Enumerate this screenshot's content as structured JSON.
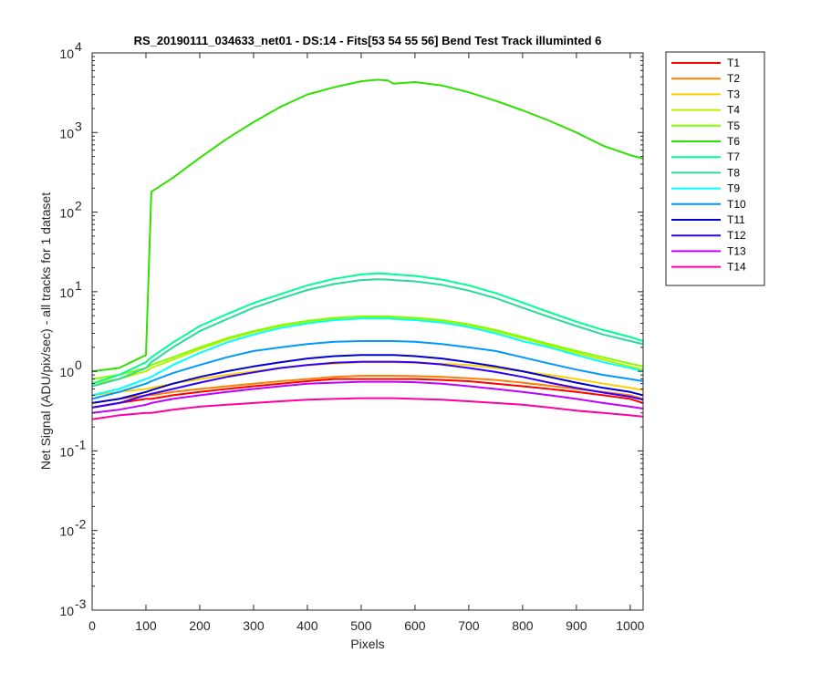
{
  "chart_data": {
    "type": "line",
    "title": "RS_20190111_034633_net01 - DS:14 - Fits[53  54  55  56]   Bend Test        Track illuminted 6",
    "xlabel": "Pixels",
    "ylabel": "Net Signal (ADU/pix/sec) - all tracks for 1 dataset",
    "yscale": "log",
    "xlim": [
      0,
      1024
    ],
    "ylim": [
      0.001,
      10000
    ],
    "x_ticks": [
      0,
      100,
      200,
      300,
      400,
      500,
      600,
      700,
      800,
      900,
      1000
    ],
    "x_tick_labels": [
      "0",
      "100",
      "200",
      "300",
      "400",
      "500",
      "600",
      "700",
      "800",
      "900",
      "1000"
    ],
    "y_ticks": [
      0.001,
      0.01,
      0.1,
      1,
      10,
      100,
      1000,
      10000
    ],
    "y_tick_mantissa": [
      "10",
      "10",
      "10",
      "10",
      "10",
      "10",
      "10",
      "10"
    ],
    "y_tick_exponents": [
      "-3",
      "-2",
      "-1",
      "0",
      "1",
      "2",
      "3",
      "4"
    ],
    "grid": false,
    "legend_position": "outside-right-top",
    "x": [
      0,
      50,
      100,
      110,
      150,
      200,
      250,
      300,
      350,
      400,
      450,
      500,
      530,
      550,
      560,
      600,
      650,
      700,
      750,
      800,
      850,
      900,
      950,
      1000,
      1024
    ],
    "series": [
      {
        "name": "T1",
        "color": "#ff0000",
        "values": [
          0.35,
          0.4,
          0.45,
          0.45,
          0.5,
          0.55,
          0.6,
          0.65,
          0.7,
          0.75,
          0.8,
          0.8,
          0.8,
          0.8,
          0.8,
          0.8,
          0.78,
          0.75,
          0.7,
          0.65,
          0.6,
          0.55,
          0.5,
          0.45,
          0.4
        ]
      },
      {
        "name": "T2",
        "color": "#ff7f00",
        "values": [
          0.4,
          0.45,
          0.5,
          0.5,
          0.55,
          0.6,
          0.65,
          0.7,
          0.75,
          0.8,
          0.85,
          0.88,
          0.88,
          0.88,
          0.88,
          0.87,
          0.85,
          0.82,
          0.78,
          0.72,
          0.66,
          0.6,
          0.55,
          0.5,
          0.45
        ]
      },
      {
        "name": "T3",
        "color": "#ffd000",
        "values": [
          0.5,
          0.55,
          0.6,
          0.62,
          0.7,
          0.8,
          0.9,
          1.0,
          1.1,
          1.2,
          1.25,
          1.3,
          1.3,
          1.3,
          1.3,
          1.28,
          1.25,
          1.2,
          1.1,
          1.0,
          0.9,
          0.8,
          0.7,
          0.62,
          0.58
        ]
      },
      {
        "name": "T4",
        "color": "#bff000",
        "values": [
          0.7,
          0.8,
          1.0,
          1.1,
          1.4,
          1.9,
          2.5,
          3.1,
          3.7,
          4.2,
          4.6,
          4.8,
          4.8,
          4.8,
          4.75,
          4.6,
          4.3,
          3.8,
          3.2,
          2.6,
          2.1,
          1.7,
          1.4,
          1.15,
          1.05
        ]
      },
      {
        "name": "T5",
        "color": "#7fff00",
        "values": [
          0.8,
          0.9,
          1.1,
          1.2,
          1.5,
          2.0,
          2.6,
          3.2,
          3.8,
          4.3,
          4.7,
          4.9,
          4.9,
          4.9,
          4.85,
          4.7,
          4.4,
          3.9,
          3.3,
          2.7,
          2.2,
          1.8,
          1.5,
          1.25,
          1.15
        ]
      },
      {
        "name": "T6",
        "color": "#2fe000",
        "values": [
          1.0,
          1.1,
          1.6,
          180,
          270,
          480,
          830,
          1350,
          2100,
          3000,
          3700,
          4400,
          4600,
          4500,
          4100,
          4300,
          3900,
          3200,
          2500,
          1900,
          1400,
          1000,
          680,
          520,
          470
        ]
      },
      {
        "name": "T7",
        "color": "#00ff90",
        "values": [
          0.7,
          0.9,
          1.3,
          1.5,
          2.3,
          3.7,
          5.2,
          7.2,
          9.3,
          12.0,
          14.5,
          16.5,
          17.0,
          16.8,
          16.5,
          15.8,
          14.2,
          12.0,
          9.6,
          7.3,
          5.5,
          4.2,
          3.3,
          2.7,
          2.4
        ]
      },
      {
        "name": "T8",
        "color": "#2ed6a0",
        "values": [
          0.65,
          0.8,
          1.1,
          1.3,
          2.0,
          3.2,
          4.5,
          6.3,
          8.2,
          10.5,
          12.5,
          14.0,
          14.3,
          14.2,
          14.0,
          13.5,
          12.2,
          10.3,
          8.3,
          6.3,
          4.8,
          3.7,
          2.9,
          2.4,
          2.2
        ]
      },
      {
        "name": "T9",
        "color": "#00ffff",
        "values": [
          0.5,
          0.6,
          0.8,
          0.85,
          1.2,
          1.7,
          2.3,
          2.9,
          3.5,
          4.0,
          4.4,
          4.6,
          4.6,
          4.6,
          4.55,
          4.4,
          4.1,
          3.6,
          3.0,
          2.4,
          2.0,
          1.6,
          1.3,
          1.1,
          1.0
        ]
      },
      {
        "name": "T10",
        "color": "#0098ff",
        "values": [
          0.45,
          0.55,
          0.7,
          0.75,
          0.95,
          1.2,
          1.5,
          1.8,
          2.0,
          2.2,
          2.35,
          2.4,
          2.4,
          2.4,
          2.4,
          2.35,
          2.2,
          2.0,
          1.8,
          1.5,
          1.25,
          1.05,
          0.9,
          0.8,
          0.75
        ]
      },
      {
        "name": "T11",
        "color": "#0000d0",
        "values": [
          0.4,
          0.45,
          0.55,
          0.58,
          0.7,
          0.85,
          1.0,
          1.15,
          1.3,
          1.45,
          1.55,
          1.6,
          1.6,
          1.6,
          1.6,
          1.55,
          1.45,
          1.3,
          1.15,
          1.0,
          0.85,
          0.72,
          0.62,
          0.55,
          0.5
        ]
      },
      {
        "name": "T12",
        "color": "#3000ff",
        "values": [
          0.35,
          0.4,
          0.5,
          0.52,
          0.6,
          0.72,
          0.85,
          0.97,
          1.1,
          1.2,
          1.28,
          1.32,
          1.32,
          1.32,
          1.32,
          1.3,
          1.22,
          1.1,
          0.98,
          0.85,
          0.72,
          0.62,
          0.54,
          0.48,
          0.44
        ]
      },
      {
        "name": "T13",
        "color": "#c000ff",
        "values": [
          0.3,
          0.33,
          0.38,
          0.4,
          0.45,
          0.5,
          0.55,
          0.6,
          0.65,
          0.7,
          0.72,
          0.74,
          0.74,
          0.74,
          0.74,
          0.73,
          0.7,
          0.65,
          0.6,
          0.55,
          0.5,
          0.45,
          0.4,
          0.36,
          0.34
        ]
      },
      {
        "name": "T14",
        "color": "#ff00a0",
        "values": [
          0.25,
          0.28,
          0.3,
          0.3,
          0.33,
          0.36,
          0.38,
          0.4,
          0.42,
          0.44,
          0.45,
          0.46,
          0.46,
          0.46,
          0.46,
          0.45,
          0.44,
          0.42,
          0.4,
          0.38,
          0.35,
          0.32,
          0.3,
          0.28,
          0.27
        ]
      }
    ]
  }
}
